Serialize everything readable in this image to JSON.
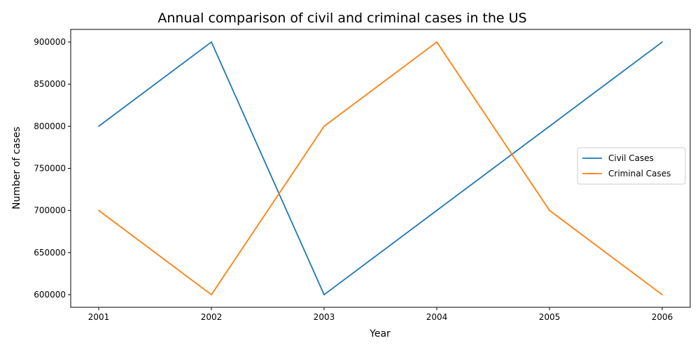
{
  "chart_data": {
    "type": "line",
    "title": "Annual comparison of civil and criminal cases in the US",
    "xlabel": "Year",
    "ylabel": "Number of cases",
    "x": [
      "2001",
      "2002",
      "2003",
      "2004",
      "2005",
      "2006"
    ],
    "series": [
      {
        "name": "Civil Cases",
        "color": "#1f77b4",
        "values": [
          800000,
          900000,
          600000,
          700000,
          800000,
          900000
        ]
      },
      {
        "name": "Criminal Cases",
        "color": "#ff7f0e",
        "values": [
          700000,
          600000,
          800000,
          900000,
          700000,
          600000
        ]
      }
    ],
    "ylim": [
      585000,
      915000
    ],
    "yticks": [
      600000,
      650000,
      700000,
      750000,
      800000,
      850000,
      900000
    ],
    "grid": false,
    "legend": "center-right"
  }
}
